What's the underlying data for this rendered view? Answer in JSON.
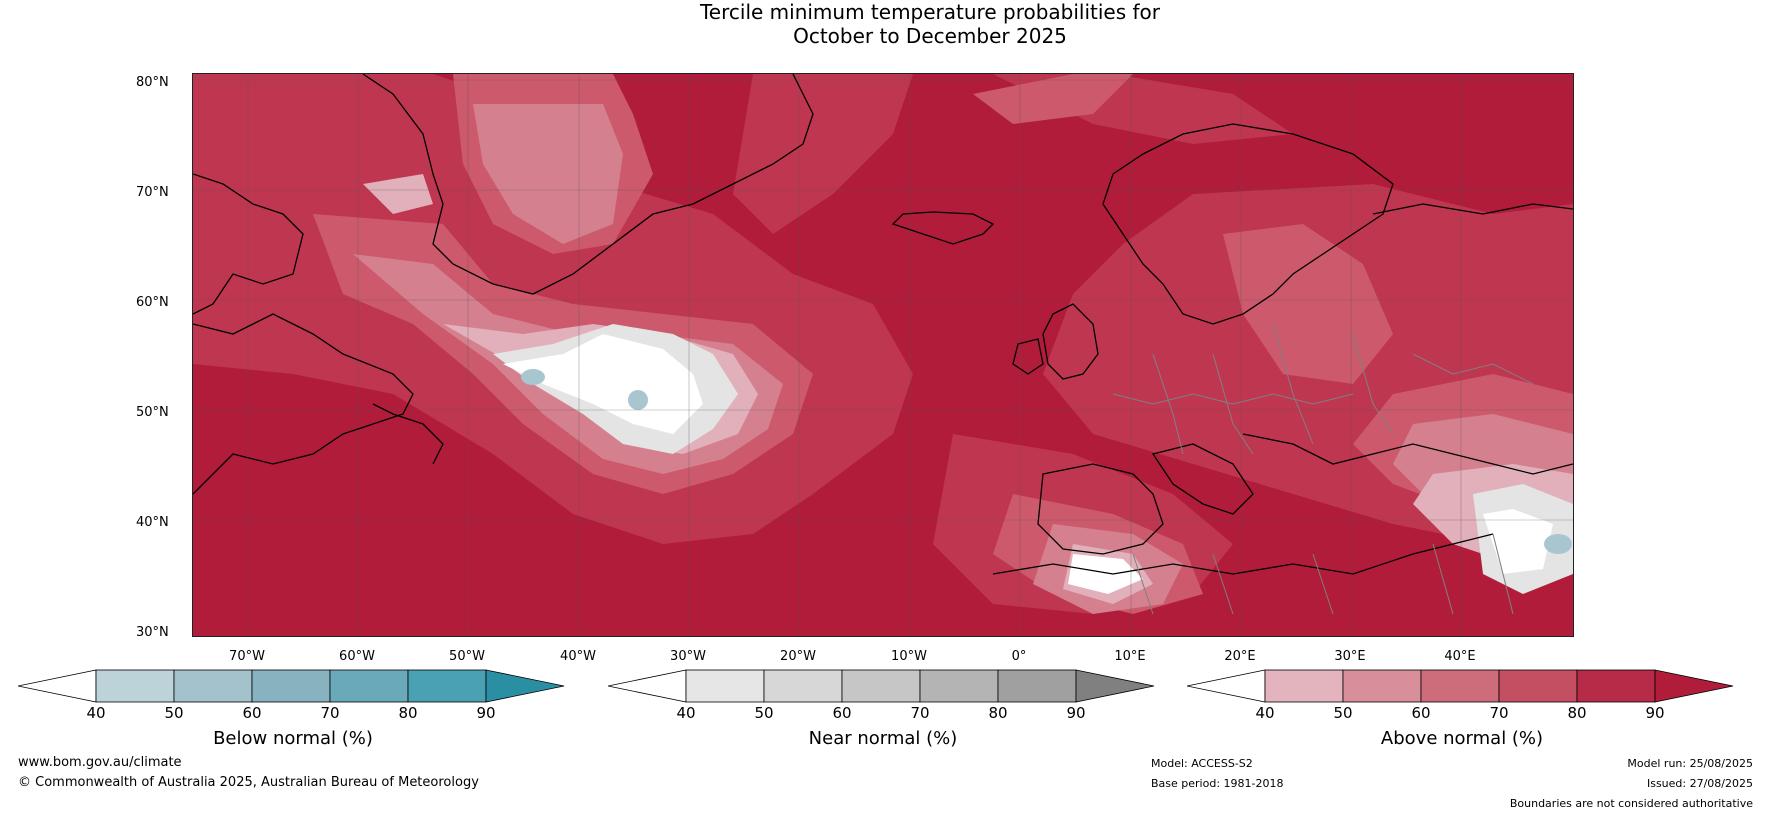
{
  "title": {
    "line1": "Tercile minimum temperature probabilities for",
    "line2": "October to December 2025"
  },
  "map": {
    "latitudes": [
      "80°N",
      "70°N",
      "60°N",
      "50°N",
      "40°N",
      "30°N"
    ],
    "longitudes": [
      "70°W",
      "60°W",
      "50°W",
      "40°W",
      "30°W",
      "20°W",
      "10°W",
      "0°",
      "10°E",
      "20°E",
      "30°E",
      "40°E"
    ],
    "fill_colors": {
      "above_90": "#b01c3a",
      "above_80": "#bf3650",
      "above_70": "#cc5a6c",
      "above_60": "#d5808f",
      "above_50": "#e2b0ba",
      "near_40": "#ffffff",
      "near_50": "#e4e4e4",
      "below_50": "#a8c6d0"
    }
  },
  "legends": [
    {
      "label": "Below normal (%)",
      "ticks": [
        "40",
        "50",
        "60",
        "70",
        "80",
        "90"
      ],
      "colors": [
        "#bcd3da",
        "#a3c2cc",
        "#87b2c0",
        "#69a9ba",
        "#4aa1b3"
      ],
      "extend_color": "#2a8fa3"
    },
    {
      "label": "Near normal (%)",
      "ticks": [
        "40",
        "50",
        "60",
        "70",
        "80",
        "90"
      ],
      "colors": [
        "#e6e6e6",
        "#d7d7d7",
        "#c6c6c6",
        "#b4b4b4",
        "#a0a0a0"
      ],
      "extend_color": "#808080"
    },
    {
      "label": "Above normal (%)",
      "ticks": [
        "40",
        "50",
        "60",
        "70",
        "80",
        "90"
      ],
      "colors": [
        "#e4b4be",
        "#d98e9b",
        "#cd6d7c",
        "#c44e62",
        "#b62b47"
      ],
      "extend_color": "#b01c3a"
    }
  ],
  "footer": {
    "website": "www.bom.gov.au/climate",
    "copyright": "© Commonwealth of Australia 2025, Australian Bureau of Meteorology",
    "model": "Model: ACCESS-S2",
    "base_period": "Base period: 1981-2018",
    "model_run": "Model run: 25/08/2025",
    "issued": "Issued: 27/08/2025",
    "disclaimer": "Boundaries are not considered authoritative"
  }
}
